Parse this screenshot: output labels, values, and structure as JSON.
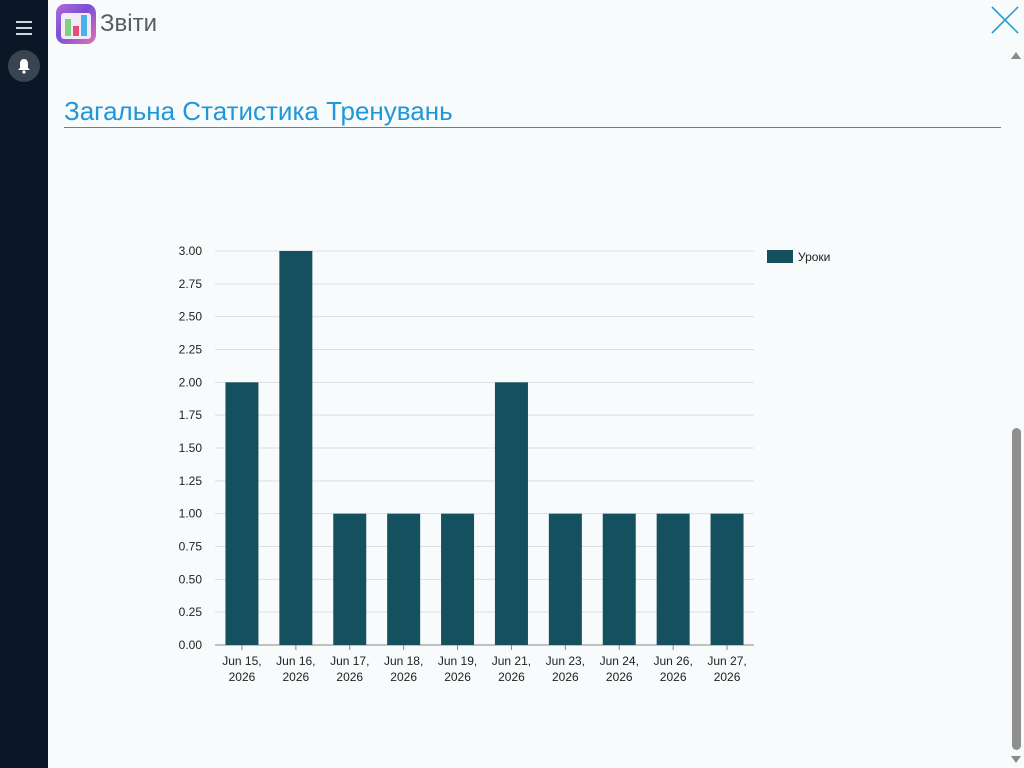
{
  "header": {
    "title": "Звіти",
    "menu_icon": "hamburger-menu-icon",
    "notification_icon": "bell-icon",
    "app_icon": "reports-app-icon",
    "close_icon": "close-icon"
  },
  "section": {
    "title": "Загальна Статистика Тренувань"
  },
  "colors": {
    "sidebar": "#0b1726",
    "accent": "#2196d9",
    "bar": "#14505e"
  },
  "chart_data": {
    "type": "bar",
    "categories": [
      [
        "Jun 15,",
        "2026"
      ],
      [
        "Jun 16,",
        "2026"
      ],
      [
        "Jun 17,",
        "2026"
      ],
      [
        "Jun 18,",
        "2026"
      ],
      [
        "Jun 19,",
        "2026"
      ],
      [
        "Jun 21,",
        "2026"
      ],
      [
        "Jun 23,",
        "2026"
      ],
      [
        "Jun 24,",
        "2026"
      ],
      [
        "Jun 26,",
        "2026"
      ],
      [
        "Jun 27,",
        "2026"
      ]
    ],
    "series": [
      {
        "name": "Уроки",
        "values": [
          2,
          3,
          1,
          1,
          1,
          2,
          1,
          1,
          1,
          1
        ]
      }
    ],
    "ylim": [
      0,
      3
    ],
    "yticks": [
      "0.00",
      "0.25",
      "0.50",
      "0.75",
      "1.00",
      "1.25",
      "1.50",
      "1.75",
      "2.00",
      "2.25",
      "2.50",
      "2.75",
      "3.00"
    ],
    "grid": true,
    "legend": "top-right"
  }
}
